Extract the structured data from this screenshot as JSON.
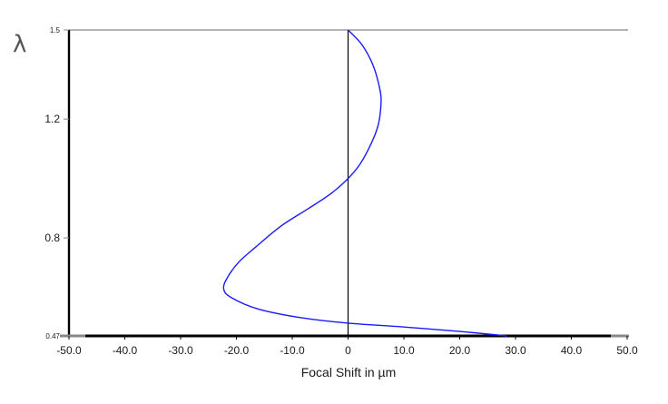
{
  "chart_data": {
    "type": "line",
    "title": "",
    "xlabel": "Focal Shift in µm",
    "ylabel": "λ",
    "xlim": [
      -50,
      50
    ],
    "ylim": [
      0.47,
      1.5
    ],
    "x_ticks": [
      "-50.0",
      "-40.0",
      "-30.0",
      "-20.0",
      "-10.0",
      "0",
      "10.0",
      "20.0",
      "30.0",
      "40.0",
      "50.0"
    ],
    "x_tick_values": [
      -50,
      -40,
      -30,
      -20,
      -10,
      0,
      10,
      20,
      30,
      40,
      50
    ],
    "y_ticks": [
      "0.47",
      "0.8",
      "1.2",
      "1.5"
    ],
    "y_tick_values": [
      0.47,
      0.8,
      1.2,
      1.5
    ],
    "grid": false,
    "series": [
      {
        "color": "#1a1aff",
        "points": [
          [
            0,
            1.5
          ],
          [
            2.5,
            1.45
          ],
          [
            4.5,
            1.38
          ],
          [
            5.7,
            1.3
          ],
          [
            5.9,
            1.25
          ],
          [
            5.4,
            1.18
          ],
          [
            4.2,
            1.12
          ],
          [
            2.2,
            1.05
          ],
          [
            0,
            1.0
          ],
          [
            -3,
            0.95
          ],
          [
            -7,
            0.9
          ],
          [
            -12,
            0.84
          ],
          [
            -16.5,
            0.77
          ],
          [
            -19.5,
            0.72
          ],
          [
            -21.5,
            0.67
          ],
          [
            -22.3,
            0.63
          ],
          [
            -21,
            0.6
          ],
          [
            -16,
            0.56
          ],
          [
            -8,
            0.53
          ],
          [
            0,
            0.513
          ],
          [
            10,
            0.5
          ],
          [
            20,
            0.485
          ],
          [
            28.5,
            0.47
          ]
        ]
      }
    ],
    "colors": {
      "axis": "#000000",
      "frame": "#888888",
      "curve": "#1a1aff"
    }
  }
}
